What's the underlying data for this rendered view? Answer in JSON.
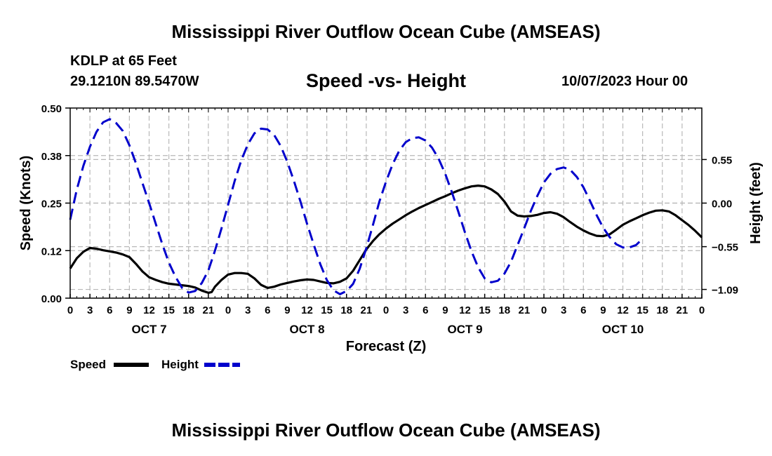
{
  "header": {
    "title": "Mississippi River Outflow Ocean Cube (AMSEAS)",
    "station": "KDLP at 65 Feet",
    "coords": "29.1210N  89.5470W",
    "chart_title": "Speed -vs- Height",
    "datetime": "10/07/2023 Hour 00"
  },
  "footer": {
    "title": "Mississippi River Outflow Ocean Cube (AMSEAS)"
  },
  "chart_data": {
    "type": "line",
    "title": "Speed -vs- Height",
    "xlabel": "Forecast (Z)",
    "ylabel_left": "Speed (Knots)",
    "ylabel_right": "Height (feet)",
    "x_range": [
      0,
      96
    ],
    "x_ticks": [
      0,
      3,
      6,
      9,
      12,
      15,
      18,
      21,
      24,
      27,
      30,
      33,
      36,
      39,
      42,
      45,
      48,
      51,
      54,
      57,
      60,
      63,
      66,
      69,
      72,
      75,
      78,
      81,
      84,
      87,
      90,
      93,
      96
    ],
    "x_tick_labels": [
      "0",
      "3",
      "6",
      "9",
      "12",
      "15",
      "18",
      "21",
      "0",
      "3",
      "6",
      "9",
      "12",
      "15",
      "18",
      "21",
      "0",
      "3",
      "6",
      "9",
      "12",
      "15",
      "18",
      "21",
      "0",
      "3",
      "6",
      "9",
      "12",
      "15",
      "18",
      "21",
      "0"
    ],
    "day_labels": [
      {
        "x": 12,
        "label": "OCT 7"
      },
      {
        "x": 36,
        "label": "OCT 8"
      },
      {
        "x": 60,
        "label": "OCT 9"
      },
      {
        "x": 84,
        "label": "OCT 10"
      }
    ],
    "y_left": {
      "range": [
        0,
        0.5
      ],
      "ticks": [
        0,
        0.125,
        0.25,
        0.375,
        0.5
      ],
      "tick_labels": [
        "0.00",
        "0.12",
        "0.25",
        "0.38",
        "0.50"
      ]
    },
    "y_right": {
      "range": [
        -1.2,
        1.2
      ],
      "ticks": [
        -1.09,
        -0.55,
        0,
        0.55
      ],
      "tick_labels": [
        "−1.09",
        "−0.55",
        "0.00",
        "0.55"
      ]
    },
    "grid": true,
    "legend": {
      "position": "bottom-left",
      "speed_label": "Speed",
      "height_label": "Height"
    },
    "series": [
      {
        "name": "Speed",
        "axis": "left",
        "color": "#000000",
        "style": "solid",
        "points": [
          [
            0,
            0.078
          ],
          [
            1,
            0.105
          ],
          [
            2,
            0.122
          ],
          [
            3,
            0.132
          ],
          [
            4,
            0.13
          ],
          [
            5,
            0.126
          ],
          [
            6,
            0.123
          ],
          [
            7,
            0.12
          ],
          [
            8,
            0.115
          ],
          [
            9,
            0.108
          ],
          [
            10,
            0.09
          ],
          [
            11,
            0.07
          ],
          [
            12,
            0.055
          ],
          [
            13,
            0.048
          ],
          [
            14,
            0.042
          ],
          [
            15,
            0.038
          ],
          [
            16,
            0.036
          ],
          [
            17,
            0.034
          ],
          [
            18,
            0.032
          ],
          [
            19,
            0.028
          ],
          [
            20,
            0.02
          ],
          [
            21,
            0.014
          ],
          [
            21.5,
            0.016
          ],
          [
            22,
            0.03
          ],
          [
            23,
            0.048
          ],
          [
            24,
            0.062
          ],
          [
            25,
            0.066
          ],
          [
            26,
            0.066
          ],
          [
            27,
            0.064
          ],
          [
            28,
            0.052
          ],
          [
            29,
            0.035
          ],
          [
            30,
            0.027
          ],
          [
            31,
            0.03
          ],
          [
            32,
            0.036
          ],
          [
            33,
            0.04
          ],
          [
            34,
            0.044
          ],
          [
            35,
            0.047
          ],
          [
            36,
            0.049
          ],
          [
            37,
            0.048
          ],
          [
            38,
            0.044
          ],
          [
            39,
            0.04
          ],
          [
            40,
            0.039
          ],
          [
            41,
            0.043
          ],
          [
            42,
            0.052
          ],
          [
            43,
            0.072
          ],
          [
            44,
            0.1
          ],
          [
            45,
            0.128
          ],
          [
            46,
            0.15
          ],
          [
            47,
            0.168
          ],
          [
            48,
            0.183
          ],
          [
            49,
            0.196
          ],
          [
            50,
            0.207
          ],
          [
            51,
            0.218
          ],
          [
            52,
            0.228
          ],
          [
            53,
            0.237
          ],
          [
            54,
            0.245
          ],
          [
            55,
            0.253
          ],
          [
            56,
            0.261
          ],
          [
            57,
            0.268
          ],
          [
            58,
            0.276
          ],
          [
            59,
            0.283
          ],
          [
            60,
            0.289
          ],
          [
            61,
            0.294
          ],
          [
            62,
            0.296
          ],
          [
            63,
            0.294
          ],
          [
            64,
            0.286
          ],
          [
            65,
            0.274
          ],
          [
            66,
            0.254
          ],
          [
            67,
            0.228
          ],
          [
            68,
            0.217
          ],
          [
            69,
            0.215
          ],
          [
            70,
            0.216
          ],
          [
            71,
            0.219
          ],
          [
            72,
            0.224
          ],
          [
            73,
            0.226
          ],
          [
            74,
            0.222
          ],
          [
            75,
            0.213
          ],
          [
            76,
            0.2
          ],
          [
            77,
            0.188
          ],
          [
            78,
            0.178
          ],
          [
            79,
            0.17
          ],
          [
            80,
            0.164
          ],
          [
            81,
            0.163
          ],
          [
            82,
            0.168
          ],
          [
            83,
            0.18
          ],
          [
            84,
            0.193
          ],
          [
            85,
            0.202
          ],
          [
            86,
            0.21
          ],
          [
            87,
            0.218
          ],
          [
            88,
            0.225
          ],
          [
            89,
            0.23
          ],
          [
            90,
            0.231
          ],
          [
            91,
            0.228
          ],
          [
            92,
            0.218
          ],
          [
            93,
            0.205
          ],
          [
            94,
            0.192
          ],
          [
            95,
            0.177
          ],
          [
            96,
            0.16
          ]
        ]
      },
      {
        "name": "Height",
        "axis": "right",
        "color": "#0000cc",
        "style": "dashed",
        "points": [
          [
            0,
            -0.21
          ],
          [
            1,
            0.17
          ],
          [
            2,
            0.47
          ],
          [
            3,
            0.71
          ],
          [
            4,
            0.9
          ],
          [
            5,
            1.02
          ],
          [
            6,
            1.06
          ],
          [
            7,
            1.01
          ],
          [
            8,
            0.91
          ],
          [
            9,
            0.73
          ],
          [
            10,
            0.5
          ],
          [
            11,
            0.25
          ],
          [
            12,
            0.0
          ],
          [
            13,
            -0.26
          ],
          [
            14,
            -0.52
          ],
          [
            15,
            -0.75
          ],
          [
            16,
            -0.93
          ],
          [
            17,
            -1.07
          ],
          [
            18,
            -1.13
          ],
          [
            19,
            -1.11
          ],
          [
            20,
            -1.01
          ],
          [
            21,
            -0.85
          ],
          [
            22,
            -0.6
          ],
          [
            23,
            -0.32
          ],
          [
            24,
            -0.02
          ],
          [
            25,
            0.28
          ],
          [
            26,
            0.54
          ],
          [
            27,
            0.74
          ],
          [
            28,
            0.88
          ],
          [
            29,
            0.94
          ],
          [
            30,
            0.93
          ],
          [
            31,
            0.86
          ],
          [
            32,
            0.72
          ],
          [
            33,
            0.52
          ],
          [
            34,
            0.28
          ],
          [
            35,
            0.02
          ],
          [
            36,
            -0.26
          ],
          [
            37,
            -0.52
          ],
          [
            38,
            -0.77
          ],
          [
            39,
            -0.97
          ],
          [
            40,
            -1.1
          ],
          [
            41,
            -1.15
          ],
          [
            42,
            -1.11
          ],
          [
            43,
            -1.02
          ],
          [
            44,
            -0.83
          ],
          [
            45,
            -0.57
          ],
          [
            46,
            -0.28
          ],
          [
            47,
            0.02
          ],
          [
            48,
            0.27
          ],
          [
            49,
            0.49
          ],
          [
            50,
            0.66
          ],
          [
            51,
            0.77
          ],
          [
            52,
            0.82
          ],
          [
            53,
            0.83
          ],
          [
            54,
            0.79
          ],
          [
            55,
            0.7
          ],
          [
            56,
            0.56
          ],
          [
            57,
            0.37
          ],
          [
            58,
            0.14
          ],
          [
            59,
            -0.11
          ],
          [
            60,
            -0.37
          ],
          [
            61,
            -0.61
          ],
          [
            62,
            -0.81
          ],
          [
            63,
            -0.95
          ],
          [
            64,
            -1.0
          ],
          [
            65,
            -0.98
          ],
          [
            66,
            -0.89
          ],
          [
            67,
            -0.74
          ],
          [
            68,
            -0.53
          ],
          [
            69,
            -0.32
          ],
          [
            70,
            -0.1
          ],
          [
            71,
            0.09
          ],
          [
            72,
            0.26
          ],
          [
            73,
            0.37
          ],
          [
            74,
            0.43
          ],
          [
            75,
            0.45
          ],
          [
            76,
            0.42
          ],
          [
            77,
            0.33
          ],
          [
            78,
            0.2
          ],
          [
            79,
            0.03
          ],
          [
            80,
            -0.15
          ],
          [
            81,
            -0.31
          ],
          [
            82,
            -0.43
          ],
          [
            83,
            -0.52
          ],
          [
            84,
            -0.56
          ],
          [
            85,
            -0.56
          ],
          [
            86,
            -0.53
          ],
          [
            87,
            -0.45
          ]
        ]
      }
    ]
  }
}
